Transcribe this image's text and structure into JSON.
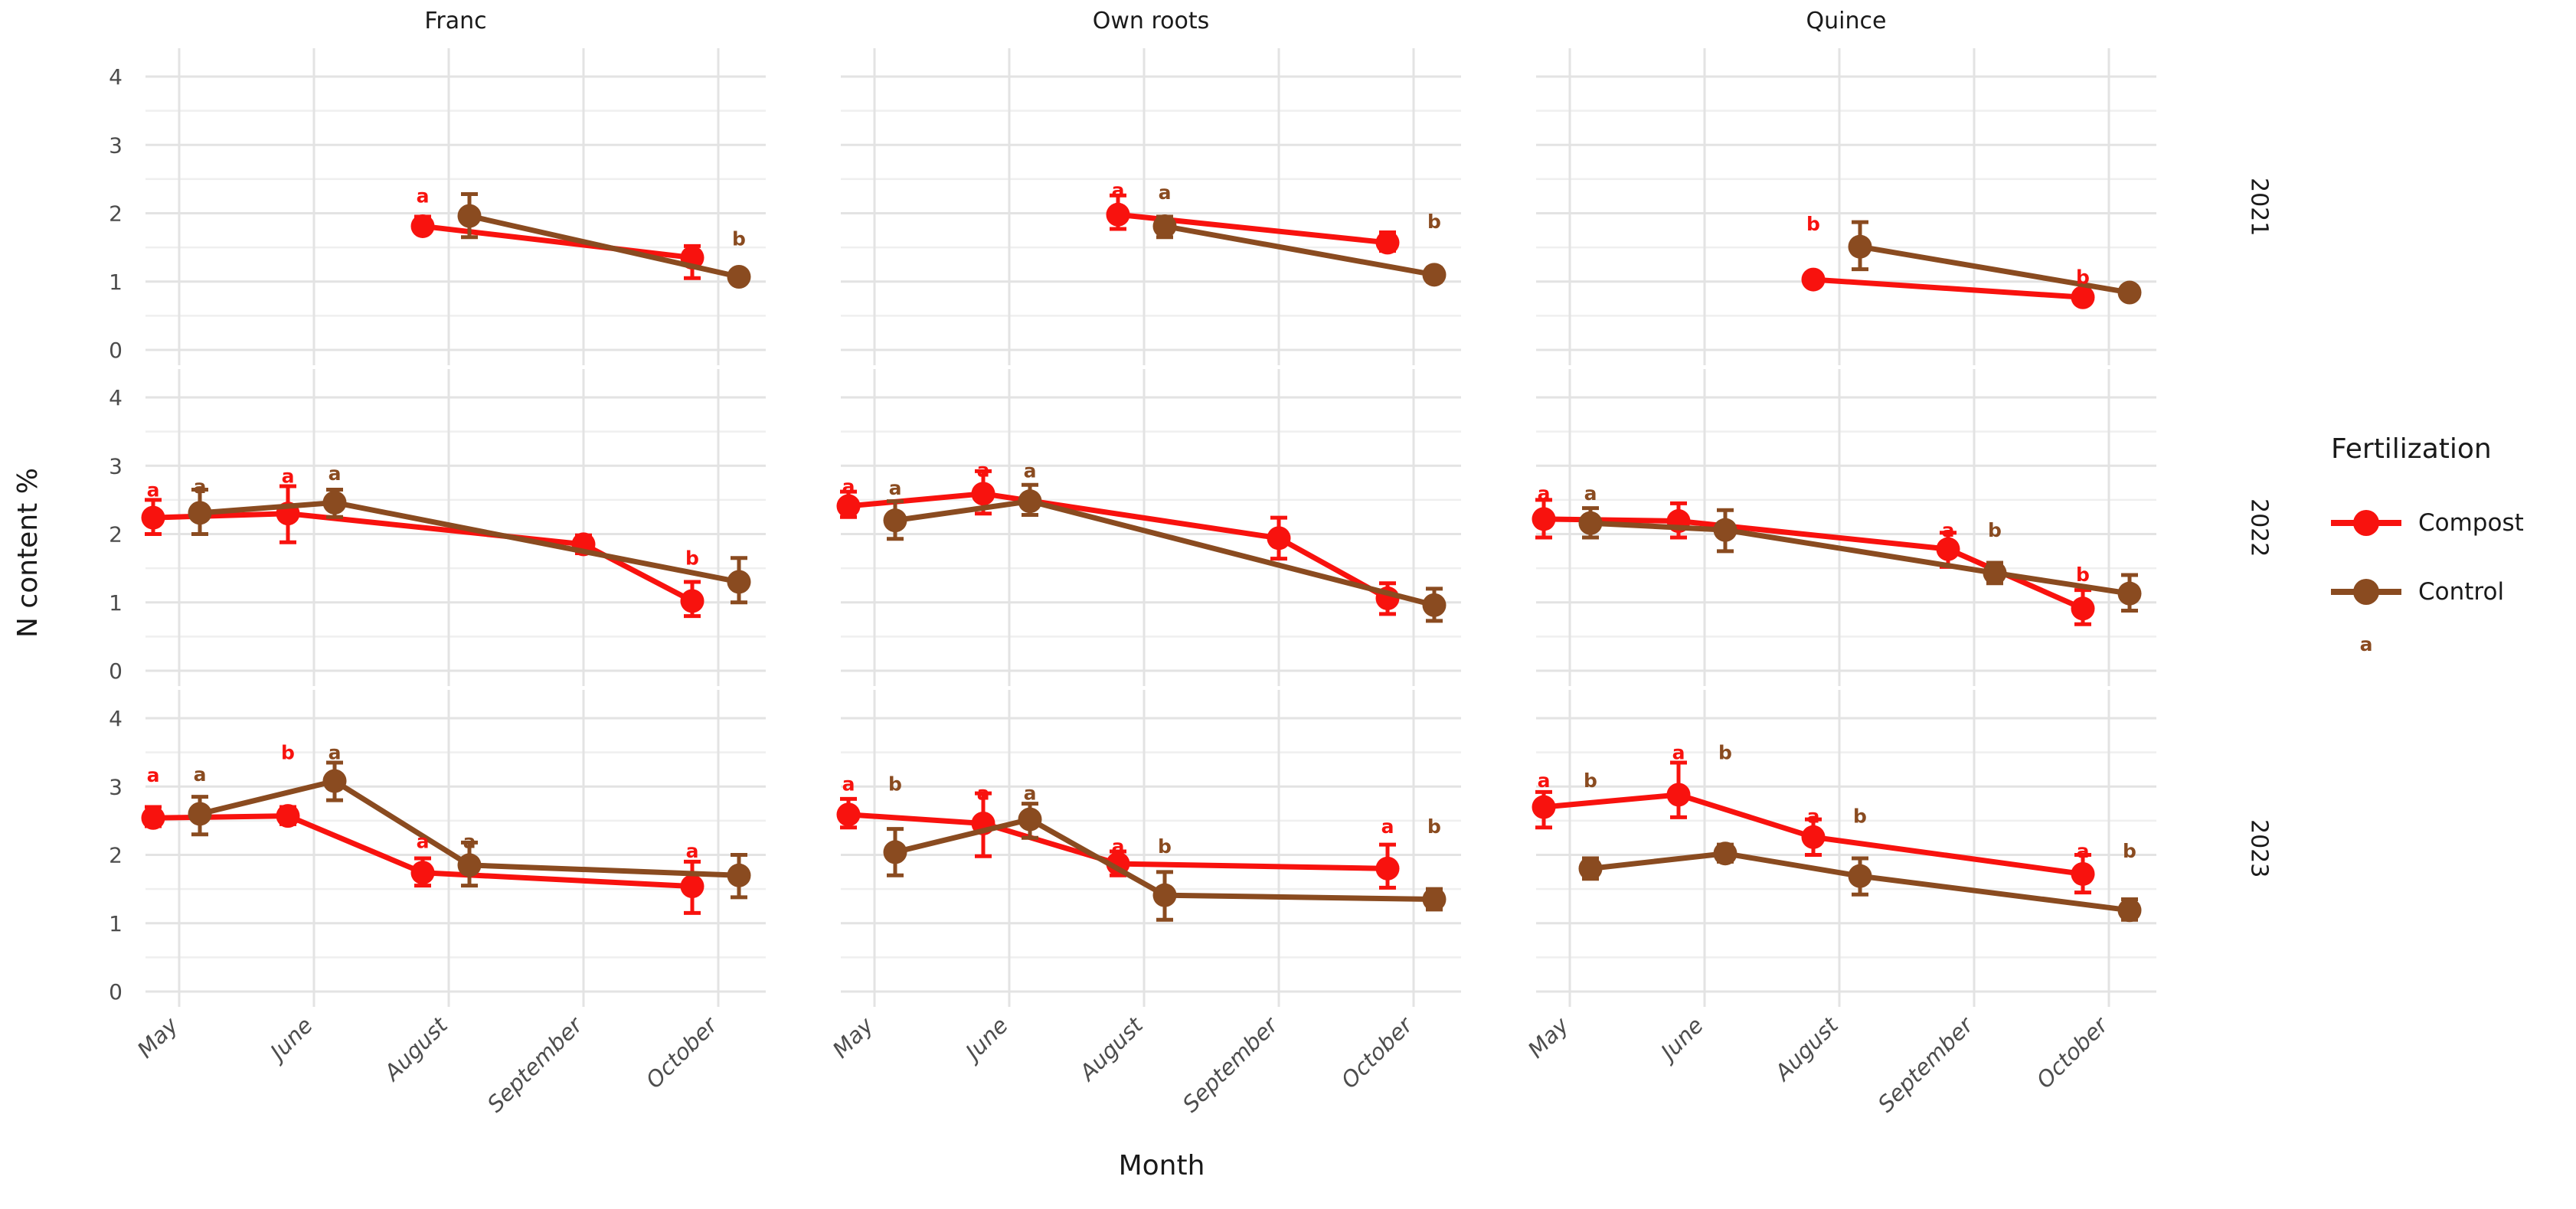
{
  "chart_data": {
    "type": "line",
    "title": "",
    "xlabel": "Month",
    "ylabel": "N content %",
    "x_categories": [
      "May",
      "June",
      "August",
      "September",
      "October"
    ],
    "ylim": [
      0,
      4
    ],
    "yticks": [
      0,
      1,
      2,
      3,
      4
    ],
    "col_facets": [
      "Franc",
      "Own roots",
      "Quince"
    ],
    "row_facets": [
      "2021",
      "2022",
      "2023"
    ],
    "grid": true,
    "theme": {
      "background": "#ffffff",
      "grid_major": "#e3e3e3",
      "grid_minor": "#efefef",
      "tick_text": "#4d4d4d",
      "title_text": "#1a1a1a"
    },
    "series_colors": {
      "Compost": "#f8120e",
      "Control": "#8a4b20"
    },
    "legend": {
      "title": "Fertilization",
      "position": "right",
      "entries": [
        {
          "label": "Compost",
          "color": "#f8120e"
        },
        {
          "label": "Control",
          "color": "#8a4b20"
        }
      ],
      "extra_key_letter": "a"
    },
    "facets": [
      {
        "col": "Franc",
        "row": "2021",
        "series": [
          {
            "name": "Compost",
            "points": [
              {
                "month": "August",
                "y": 1.81,
                "lo": 1.72,
                "hi": 1.95
              },
              {
                "month": "October",
                "y": 1.35,
                "lo": 1.05,
                "hi": 1.52
              }
            ]
          },
          {
            "name": "Control",
            "points": [
              {
                "month": "August",
                "y": 1.96,
                "lo": 1.65,
                "hi": 2.28
              },
              {
                "month": "October",
                "y": 1.07,
                "lo": 0.98,
                "hi": 1.16
              }
            ]
          }
        ],
        "labels": [
          {
            "series": "Compost",
            "month": "August",
            "y": 2.26,
            "text": "a"
          },
          {
            "series": "Control",
            "month": "October",
            "y": 1.63,
            "text": "b"
          }
        ]
      },
      {
        "col": "Own roots",
        "row": "2021",
        "series": [
          {
            "name": "Compost",
            "points": [
              {
                "month": "August",
                "y": 1.98,
                "lo": 1.77,
                "hi": 2.26
              },
              {
                "month": "October",
                "y": 1.57,
                "lo": 1.45,
                "hi": 1.72
              }
            ]
          },
          {
            "name": "Control",
            "points": [
              {
                "month": "August",
                "y": 1.81,
                "lo": 1.65,
                "hi": 1.95
              },
              {
                "month": "October",
                "y": 1.1,
                "lo": 1.0,
                "hi": 1.2
              }
            ]
          }
        ],
        "labels": [
          {
            "series": "Compost",
            "month": "August",
            "y": 2.34,
            "text": "a"
          },
          {
            "series": "Control",
            "month": "August",
            "y": 2.31,
            "text": "a"
          },
          {
            "series": "Control",
            "month": "October",
            "y": 1.88,
            "text": "b"
          }
        ]
      },
      {
        "col": "Quince",
        "row": "2021",
        "series": [
          {
            "name": "Compost",
            "points": [
              {
                "month": "August",
                "y": 1.03,
                "lo": 0.97,
                "hi": 1.12
              },
              {
                "month": "October",
                "y": 0.77,
                "lo": 0.7,
                "hi": 0.85
              }
            ]
          },
          {
            "name": "Control",
            "points": [
              {
                "month": "August",
                "y": 1.51,
                "lo": 1.18,
                "hi": 1.87
              },
              {
                "month": "October",
                "y": 0.84,
                "lo": 0.78,
                "hi": 0.92
              }
            ]
          }
        ],
        "labels": [
          {
            "series": "Compost",
            "month": "August",
            "y": 1.85,
            "text": "b"
          },
          {
            "series": "Compost",
            "month": "October",
            "y": 1.07,
            "text": "b"
          }
        ]
      },
      {
        "col": "Franc",
        "row": "2022",
        "series": [
          {
            "name": "Compost",
            "points": [
              {
                "month": "May",
                "y": 2.24,
                "lo": 2.0,
                "hi": 2.5
              },
              {
                "month": "June",
                "y": 2.3,
                "lo": 1.88,
                "hi": 2.7
              },
              {
                "month": "September",
                "y": 1.85,
                "lo": 1.72,
                "hi": 1.98,
                "dx": 0
              },
              {
                "month": "October",
                "y": 1.02,
                "lo": 0.8,
                "hi": 1.3
              }
            ]
          },
          {
            "name": "Control",
            "points": [
              {
                "month": "May",
                "y": 2.31,
                "lo": 2.0,
                "hi": 2.65
              },
              {
                "month": "June",
                "y": 2.46,
                "lo": 2.25,
                "hi": 2.65
              },
              {
                "month": "October",
                "y": 1.3,
                "lo": 1.0,
                "hi": 1.65
              }
            ]
          }
        ],
        "labels": [
          {
            "series": "Compost",
            "month": "May",
            "y": 2.65,
            "text": "a"
          },
          {
            "series": "Control",
            "month": "May",
            "y": 2.7,
            "text": "a"
          },
          {
            "series": "Compost",
            "month": "June",
            "y": 2.85,
            "text": "a"
          },
          {
            "series": "Control",
            "month": "June",
            "y": 2.89,
            "text": "a"
          },
          {
            "series": "Compost",
            "month": "October",
            "y": 1.65,
            "text": "b"
          }
        ]
      },
      {
        "col": "Own roots",
        "row": "2022",
        "series": [
          {
            "name": "Compost",
            "points": [
              {
                "month": "May",
                "y": 2.41,
                "lo": 2.25,
                "hi": 2.62
              },
              {
                "month": "June",
                "y": 2.59,
                "lo": 2.3,
                "hi": 2.92
              },
              {
                "month": "September",
                "y": 1.94,
                "lo": 1.64,
                "hi": 2.24,
                "dx": 0
              },
              {
                "month": "October",
                "y": 1.06,
                "lo": 0.83,
                "hi": 1.28
              }
            ]
          },
          {
            "name": "Control",
            "points": [
              {
                "month": "May",
                "y": 2.2,
                "lo": 1.93,
                "hi": 2.48
              },
              {
                "month": "June",
                "y": 2.48,
                "lo": 2.28,
                "hi": 2.72
              },
              {
                "month": "October",
                "y": 0.96,
                "lo": 0.73,
                "hi": 1.2
              }
            ]
          }
        ],
        "labels": [
          {
            "series": "Compost",
            "month": "May",
            "y": 2.7,
            "text": "a"
          },
          {
            "series": "Control",
            "month": "May",
            "y": 2.68,
            "text": "a"
          },
          {
            "series": "Compost",
            "month": "June",
            "y": 2.94,
            "text": "a"
          },
          {
            "series": "Control",
            "month": "June",
            "y": 2.93,
            "text": "a"
          }
        ]
      },
      {
        "col": "Quince",
        "row": "2022",
        "series": [
          {
            "name": "Compost",
            "points": [
              {
                "month": "May",
                "y": 2.22,
                "lo": 1.95,
                "hi": 2.5
              },
              {
                "month": "June",
                "y": 2.19,
                "lo": 1.95,
                "hi": 2.45
              },
              {
                "month": "September",
                "y": 1.78,
                "lo": 1.52,
                "hi": 2.02
              },
              {
                "month": "October",
                "y": 0.91,
                "lo": 0.68,
                "hi": 1.18
              }
            ]
          },
          {
            "name": "Control",
            "points": [
              {
                "month": "May",
                "y": 2.16,
                "lo": 1.95,
                "hi": 2.38
              },
              {
                "month": "June",
                "y": 2.06,
                "lo": 1.75,
                "hi": 2.35
              },
              {
                "month": "September",
                "y": 1.43,
                "lo": 1.28,
                "hi": 1.58
              },
              {
                "month": "October",
                "y": 1.13,
                "lo": 0.88,
                "hi": 1.4
              }
            ]
          }
        ],
        "labels": [
          {
            "series": "Compost",
            "month": "May",
            "y": 2.6,
            "text": "a"
          },
          {
            "series": "Control",
            "month": "May",
            "y": 2.6,
            "text": "a"
          },
          {
            "series": "Compost",
            "month": "September",
            "y": 2.06,
            "text": "a"
          },
          {
            "series": "Control",
            "month": "September",
            "y": 2.06,
            "text": "b"
          },
          {
            "series": "Compost",
            "month": "October",
            "y": 1.41,
            "text": "b"
          }
        ]
      },
      {
        "col": "Franc",
        "row": "2023",
        "series": [
          {
            "name": "Compost",
            "points": [
              {
                "month": "May",
                "y": 2.54,
                "lo": 2.42,
                "hi": 2.7
              },
              {
                "month": "June",
                "y": 2.57,
                "lo": 2.45,
                "hi": 2.7
              },
              {
                "month": "August",
                "y": 1.74,
                "lo": 1.55,
                "hi": 1.95
              },
              {
                "month": "October",
                "y": 1.54,
                "lo": 1.15,
                "hi": 1.9
              }
            ]
          },
          {
            "name": "Control",
            "points": [
              {
                "month": "May",
                "y": 2.6,
                "lo": 2.3,
                "hi": 2.85
              },
              {
                "month": "June",
                "y": 3.08,
                "lo": 2.8,
                "hi": 3.35
              },
              {
                "month": "August",
                "y": 1.85,
                "lo": 1.55,
                "hi": 2.18
              },
              {
                "month": "October",
                "y": 1.7,
                "lo": 1.38,
                "hi": 2.0
              }
            ]
          }
        ],
        "labels": [
          {
            "series": "Compost",
            "month": "May",
            "y": 3.17,
            "text": "a"
          },
          {
            "series": "Control",
            "month": "May",
            "y": 3.18,
            "text": "a"
          },
          {
            "series": "Compost",
            "month": "June",
            "y": 3.5,
            "text": "b"
          },
          {
            "series": "Control",
            "month": "June",
            "y": 3.5,
            "text": "a"
          },
          {
            "series": "Compost",
            "month": "August",
            "y": 2.2,
            "text": "a"
          },
          {
            "series": "Control",
            "month": "August",
            "y": 2.2,
            "text": "a"
          },
          {
            "series": "Compost",
            "month": "October",
            "y": 2.06,
            "text": "a"
          }
        ]
      },
      {
        "col": "Own roots",
        "row": "2023",
        "series": [
          {
            "name": "Compost",
            "points": [
              {
                "month": "May",
                "y": 2.59,
                "lo": 2.4,
                "hi": 2.82
              },
              {
                "month": "June",
                "y": 2.46,
                "lo": 1.98,
                "hi": 2.9
              },
              {
                "month": "August",
                "y": 1.87,
                "lo": 1.7,
                "hi": 2.05
              },
              {
                "month": "October",
                "y": 1.8,
                "lo": 1.52,
                "hi": 2.15
              }
            ]
          },
          {
            "name": "Control",
            "points": [
              {
                "month": "May",
                "y": 2.04,
                "lo": 1.7,
                "hi": 2.38
              },
              {
                "month": "June",
                "y": 2.52,
                "lo": 2.25,
                "hi": 2.75
              },
              {
                "month": "August",
                "y": 1.41,
                "lo": 1.05,
                "hi": 1.75
              },
              {
                "month": "October",
                "y": 1.35,
                "lo": 1.2,
                "hi": 1.5
              }
            ]
          }
        ],
        "labels": [
          {
            "series": "Compost",
            "month": "May",
            "y": 3.04,
            "text": "a"
          },
          {
            "series": "Control",
            "month": "May",
            "y": 3.04,
            "text": "b"
          },
          {
            "series": "Compost",
            "month": "June",
            "y": 2.91,
            "text": "a"
          },
          {
            "series": "Control",
            "month": "June",
            "y": 2.91,
            "text": "a"
          },
          {
            "series": "Compost",
            "month": "August",
            "y": 2.13,
            "text": "a"
          },
          {
            "series": "Control",
            "month": "August",
            "y": 2.13,
            "text": "b"
          },
          {
            "series": "Compost",
            "month": "October",
            "y": 2.42,
            "text": "a"
          },
          {
            "series": "Control",
            "month": "October",
            "y": 2.42,
            "text": "b"
          }
        ]
      },
      {
        "col": "Quince",
        "row": "2023",
        "series": [
          {
            "name": "Compost",
            "points": [
              {
                "month": "May",
                "y": 2.7,
                "lo": 2.4,
                "hi": 2.92
              },
              {
                "month": "June",
                "y": 2.88,
                "lo": 2.55,
                "hi": 3.35
              },
              {
                "month": "August",
                "y": 2.26,
                "lo": 2.0,
                "hi": 2.52
              },
              {
                "month": "October",
                "y": 1.72,
                "lo": 1.45,
                "hi": 2.0
              }
            ]
          },
          {
            "name": "Control",
            "points": [
              {
                "month": "May",
                "y": 1.8,
                "lo": 1.65,
                "hi": 1.95
              },
              {
                "month": "June",
                "y": 2.02,
                "lo": 1.9,
                "hi": 2.15
              },
              {
                "month": "August",
                "y": 1.69,
                "lo": 1.42,
                "hi": 1.95
              },
              {
                "month": "October",
                "y": 1.19,
                "lo": 1.05,
                "hi": 1.35
              }
            ]
          }
        ],
        "labels": [
          {
            "series": "Compost",
            "month": "May",
            "y": 3.09,
            "text": "a"
          },
          {
            "series": "Control",
            "month": "May",
            "y": 3.09,
            "text": "b"
          },
          {
            "series": "Compost",
            "month": "June",
            "y": 3.5,
            "text": "a"
          },
          {
            "series": "Control",
            "month": "June",
            "y": 3.5,
            "text": "b"
          },
          {
            "series": "Compost",
            "month": "August",
            "y": 2.57,
            "text": "a"
          },
          {
            "series": "Control",
            "month": "August",
            "y": 2.57,
            "text": "b"
          },
          {
            "series": "Compost",
            "month": "October",
            "y": 2.06,
            "text": "a"
          },
          {
            "series": "Control",
            "month": "October",
            "y": 2.06,
            "text": "b"
          }
        ]
      }
    ]
  }
}
